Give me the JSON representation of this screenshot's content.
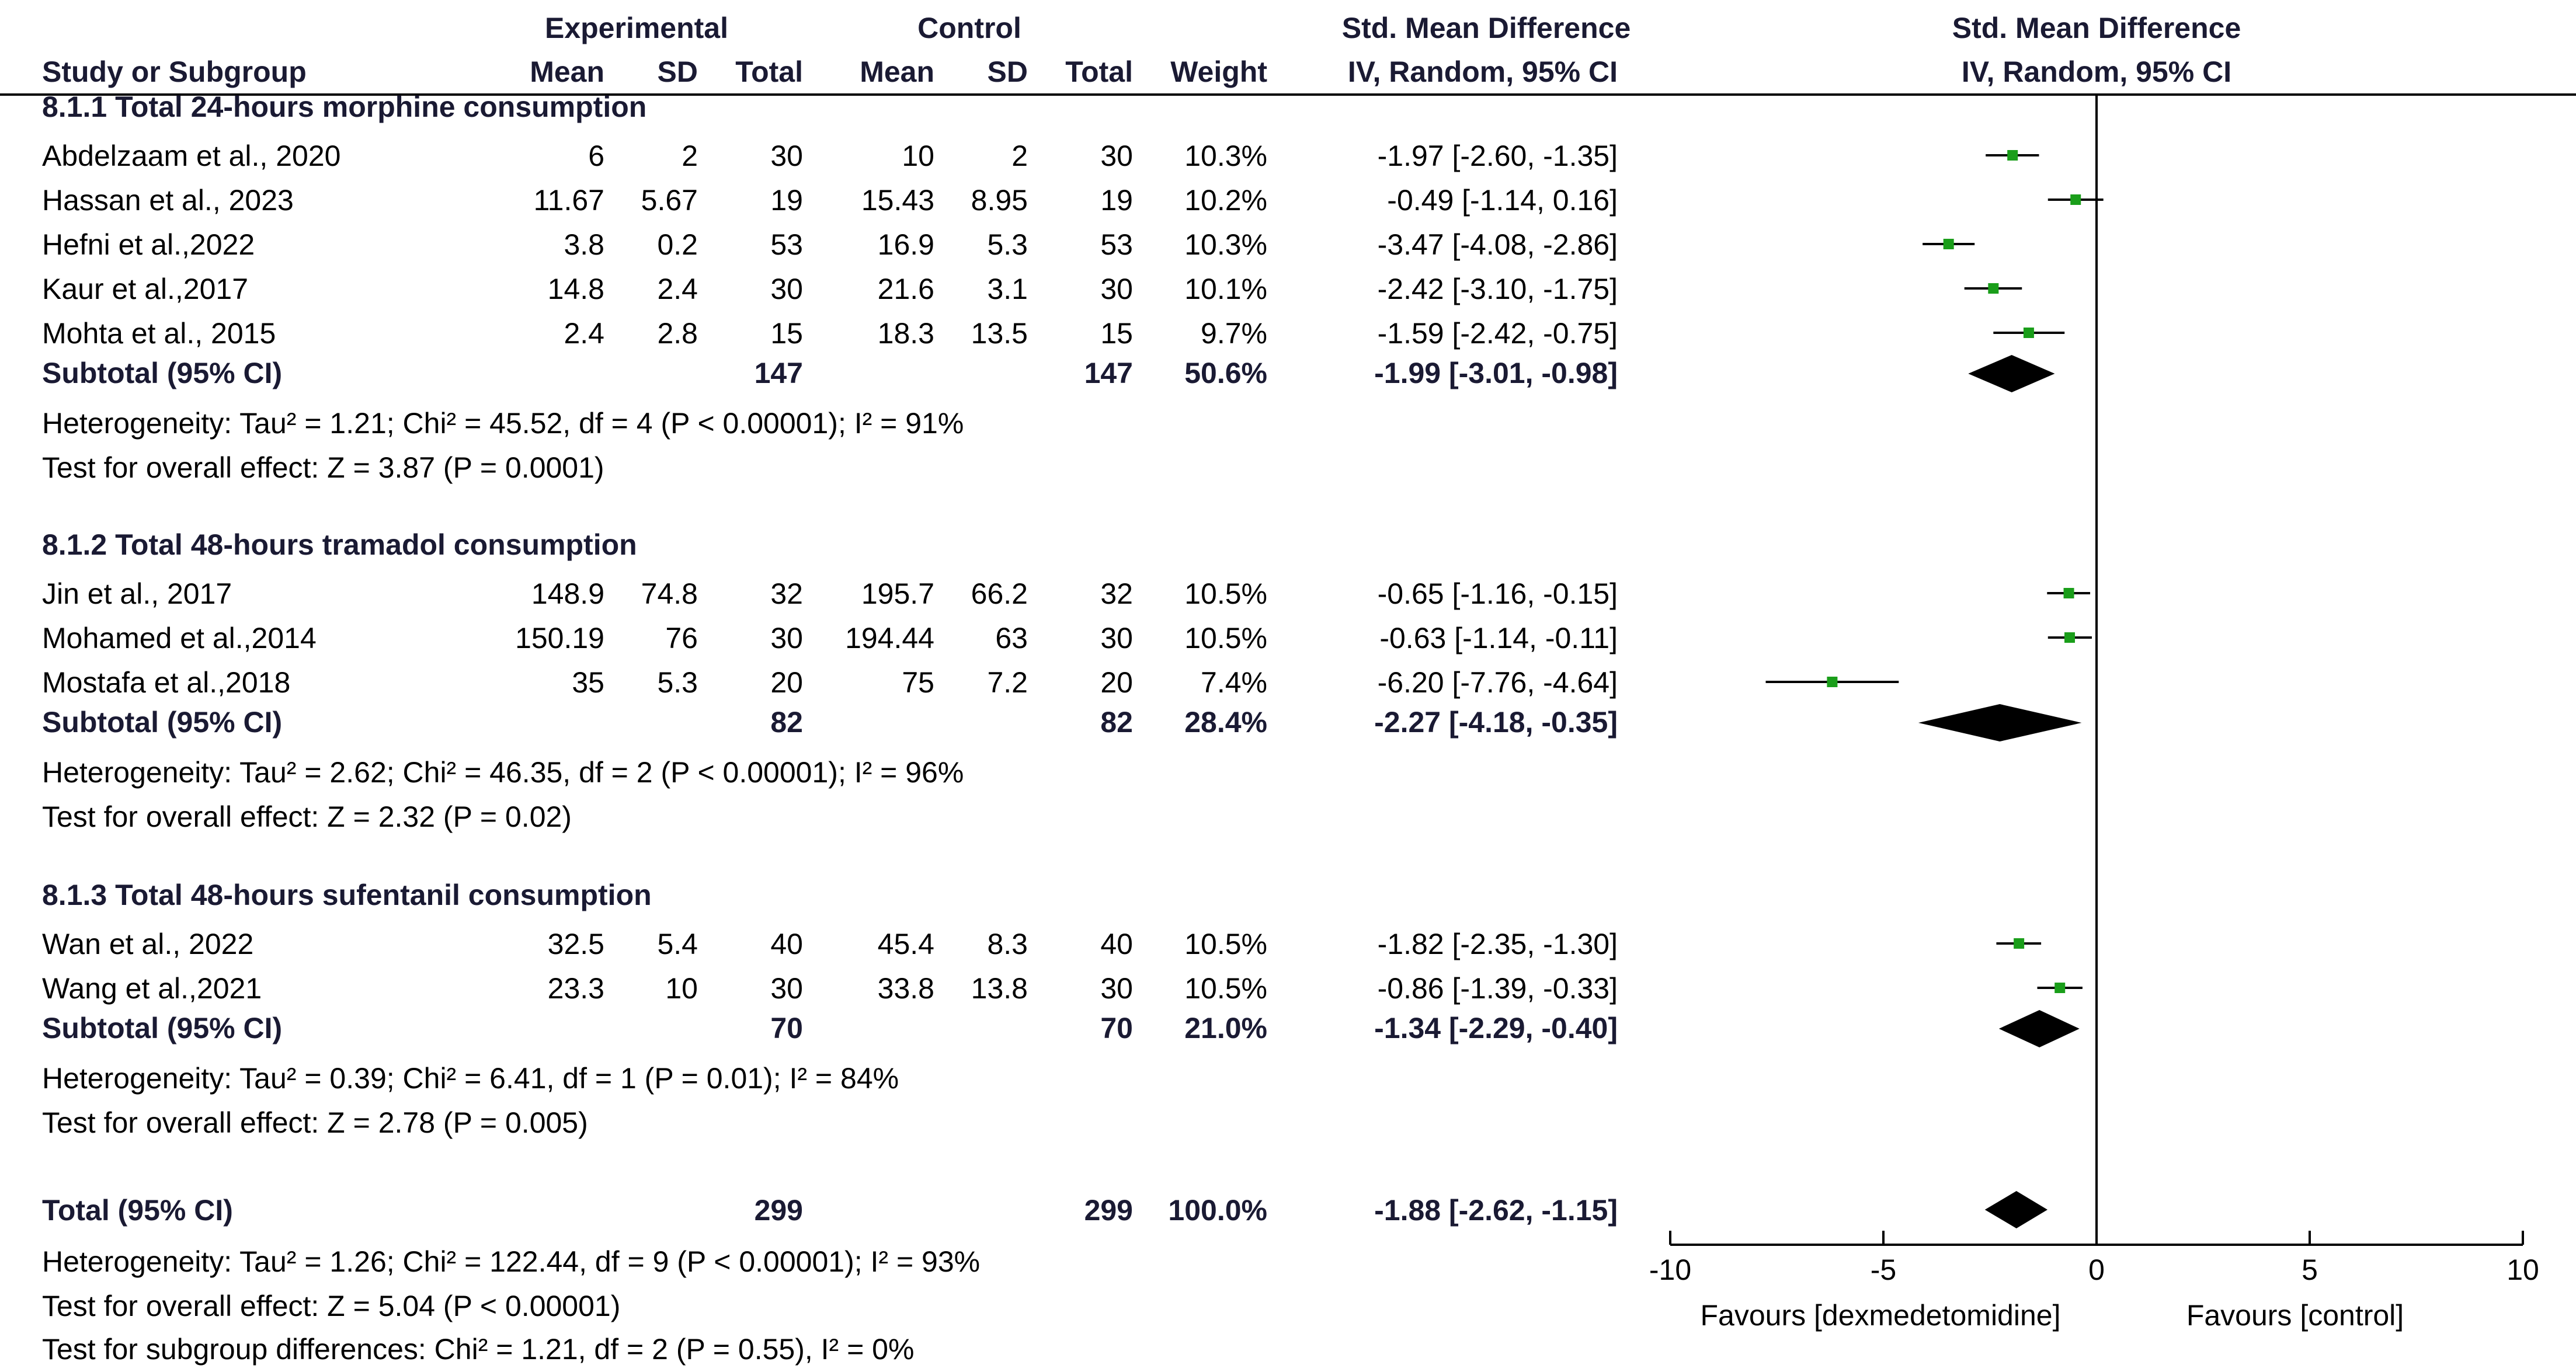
{
  "header": {
    "study_col": "Study or Subgroup",
    "exp_group": "Experimental",
    "ctrl_group": "Control",
    "smd_group": "Std. Mean Difference",
    "mean": "Mean",
    "sd": "SD",
    "total": "Total",
    "weight": "Weight",
    "method": "IV, Random, 95% CI",
    "plot_title": "Std. Mean Difference",
    "plot_method": "IV, Random, 95% CI"
  },
  "subgroups": [
    {
      "title": "8.1.1 Total 24-hours morphine consumption",
      "studies": [
        {
          "name": "Abdelzaam et al., 2020",
          "exp_mean": "6",
          "exp_sd": "2",
          "exp_total": "30",
          "ctl_mean": "10",
          "ctl_sd": "2",
          "ctl_total": "30",
          "weight": "10.3%",
          "ci_text": "-1.97 [-2.60, -1.35]",
          "est": -1.97,
          "lo": -2.6,
          "hi": -1.35
        },
        {
          "name": "Hassan et al., 2023",
          "exp_mean": "11.67",
          "exp_sd": "5.67",
          "exp_total": "19",
          "ctl_mean": "15.43",
          "ctl_sd": "8.95",
          "ctl_total": "19",
          "weight": "10.2%",
          "ci_text": "-0.49 [-1.14, 0.16]",
          "est": -0.49,
          "lo": -1.14,
          "hi": 0.16
        },
        {
          "name": "Hefni et al.,2022",
          "exp_mean": "3.8",
          "exp_sd": "0.2",
          "exp_total": "53",
          "ctl_mean": "16.9",
          "ctl_sd": "5.3",
          "ctl_total": "53",
          "weight": "10.3%",
          "ci_text": "-3.47 [-4.08, -2.86]",
          "est": -3.47,
          "lo": -4.08,
          "hi": -2.86
        },
        {
          "name": "Kaur et al.,2017",
          "exp_mean": "14.8",
          "exp_sd": "2.4",
          "exp_total": "30",
          "ctl_mean": "21.6",
          "ctl_sd": "3.1",
          "ctl_total": "30",
          "weight": "10.1%",
          "ci_text": "-2.42 [-3.10, -1.75]",
          "est": -2.42,
          "lo": -3.1,
          "hi": -1.75
        },
        {
          "name": "Mohta et al., 2015",
          "exp_mean": "2.4",
          "exp_sd": "2.8",
          "exp_total": "15",
          "ctl_mean": "18.3",
          "ctl_sd": "13.5",
          "ctl_total": "15",
          "weight": "9.7%",
          "ci_text": "-1.59 [-2.42, -0.75]",
          "est": -1.59,
          "lo": -2.42,
          "hi": -0.75
        }
      ],
      "subtotal": {
        "label": "Subtotal (95% CI)",
        "exp_total": "147",
        "ctl_total": "147",
        "weight": "50.6%",
        "ci_text": "-1.99 [-3.01, -0.98]",
        "est": -1.99,
        "lo": -3.01,
        "hi": -0.98
      },
      "heterogeneity": "Heterogeneity: Tau² = 1.21; Chi² = 45.52, df = 4 (P < 0.00001); I² = 91%",
      "overall": "Test for overall effect: Z = 3.87 (P = 0.0001)"
    },
    {
      "title": "8.1.2 Total 48-hours tramadol consumption",
      "studies": [
        {
          "name": "Jin et al., 2017",
          "exp_mean": "148.9",
          "exp_sd": "74.8",
          "exp_total": "32",
          "ctl_mean": "195.7",
          "ctl_sd": "66.2",
          "ctl_total": "32",
          "weight": "10.5%",
          "ci_text": "-0.65 [-1.16, -0.15]",
          "est": -0.65,
          "lo": -1.16,
          "hi": -0.15
        },
        {
          "name": "Mohamed et al.,2014",
          "exp_mean": "150.19",
          "exp_sd": "76",
          "exp_total": "30",
          "ctl_mean": "194.44",
          "ctl_sd": "63",
          "ctl_total": "30",
          "weight": "10.5%",
          "ci_text": "-0.63 [-1.14, -0.11]",
          "est": -0.63,
          "lo": -1.14,
          "hi": -0.11
        },
        {
          "name": "Mostafa et al.,2018",
          "exp_mean": "35",
          "exp_sd": "5.3",
          "exp_total": "20",
          "ctl_mean": "75",
          "ctl_sd": "7.2",
          "ctl_total": "20",
          "weight": "7.4%",
          "ci_text": "-6.20 [-7.76, -4.64]",
          "est": -6.2,
          "lo": -7.76,
          "hi": -4.64
        }
      ],
      "subtotal": {
        "label": "Subtotal (95% CI)",
        "exp_total": "82",
        "ctl_total": "82",
        "weight": "28.4%",
        "ci_text": "-2.27 [-4.18, -0.35]",
        "est": -2.27,
        "lo": -4.18,
        "hi": -0.35
      },
      "heterogeneity": "Heterogeneity: Tau² = 2.62; Chi² = 46.35, df = 2 (P < 0.00001); I² = 96%",
      "overall": "Test for overall effect: Z = 2.32 (P = 0.02)"
    },
    {
      "title": "8.1.3 Total 48-hours sufentanil consumption",
      "studies": [
        {
          "name": "Wan et al., 2022",
          "exp_mean": "32.5",
          "exp_sd": "5.4",
          "exp_total": "40",
          "ctl_mean": "45.4",
          "ctl_sd": "8.3",
          "ctl_total": "40",
          "weight": "10.5%",
          "ci_text": "-1.82 [-2.35, -1.30]",
          "est": -1.82,
          "lo": -2.35,
          "hi": -1.3
        },
        {
          "name": "Wang et al.,2021",
          "exp_mean": "23.3",
          "exp_sd": "10",
          "exp_total": "30",
          "ctl_mean": "33.8",
          "ctl_sd": "13.8",
          "ctl_total": "30",
          "weight": "10.5%",
          "ci_text": "-0.86 [-1.39, -0.33]",
          "est": -0.86,
          "lo": -1.39,
          "hi": -0.33
        }
      ],
      "subtotal": {
        "label": "Subtotal (95% CI)",
        "exp_total": "70",
        "ctl_total": "70",
        "weight": "21.0%",
        "ci_text": "-1.34 [-2.29, -0.40]",
        "est": -1.34,
        "lo": -2.29,
        "hi": -0.4
      },
      "heterogeneity": "Heterogeneity: Tau² = 0.39; Chi² = 6.41, df = 1 (P = 0.01); I² = 84%",
      "overall": "Test for overall effect: Z = 2.78 (P = 0.005)"
    }
  ],
  "total": {
    "label": "Total (95% CI)",
    "exp_total": "299",
    "ctl_total": "299",
    "weight": "100.0%",
    "ci_text": "-1.88 [-2.62, -1.15]",
    "est": -1.88,
    "lo": -2.62,
    "hi": -1.15
  },
  "footer": {
    "heterogeneity": "Heterogeneity: Tau² = 1.26; Chi² = 122.44, df = 9 (P < 0.00001); I² = 93%",
    "overall": "Test for overall effect: Z = 5.04 (P < 0.00001)",
    "subgroup_diff": "Test for subgroup differences: Chi² = 1.21, df = 2 (P = 0.55), I² = 0%"
  },
  "chart_data": {
    "type": "forest",
    "title": "Std. Mean Difference",
    "subtitle": "IV, Random, 95% CI",
    "xlim": [
      -10,
      10
    ],
    "xticks": [
      -10,
      -5,
      0,
      5,
      10
    ],
    "xtick_labels": [
      "-10",
      "-5",
      "0",
      "5",
      "10"
    ],
    "favours_left": "Favours [dexmedetomidine]",
    "favours_right": "Favours [control]",
    "study_marker_color": "#1a9e1a",
    "summary_color": "#000000"
  }
}
